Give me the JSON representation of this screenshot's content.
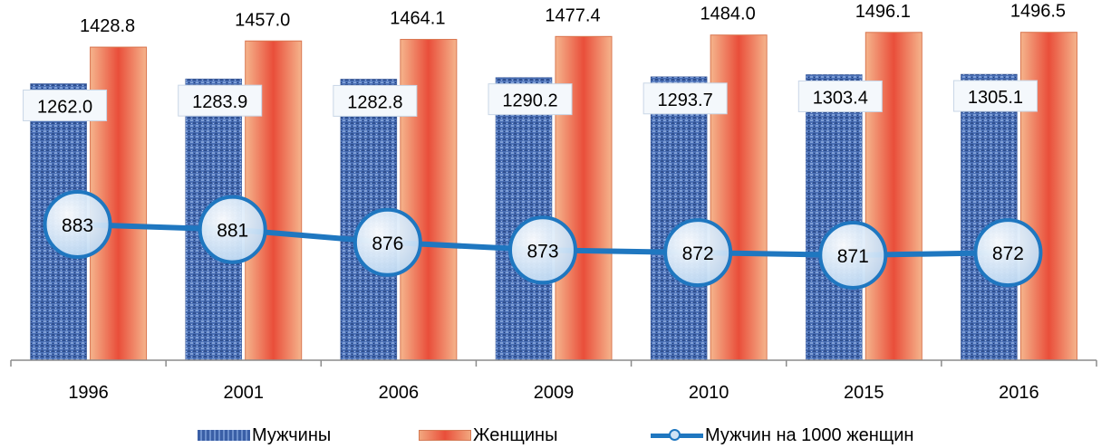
{
  "chart_data": {
    "type": "bar",
    "categories": [
      "1996",
      "2001",
      "2006",
      "2009",
      "2010",
      "2015",
      "2016"
    ],
    "series": [
      {
        "name": "Мужчины",
        "values": [
          1262.0,
          1283.9,
          1282.8,
          1290.2,
          1293.7,
          1303.4,
          1305.1
        ],
        "labels": [
          "1262.0",
          "1283.9",
          "1282.8",
          "1290.2",
          "1293.7",
          "1303.4",
          "1305.1"
        ]
      },
      {
        "name": "Женщины",
        "values": [
          1428.8,
          1457.0,
          1464.1,
          1477.4,
          1484.0,
          1496.1,
          1496.5
        ],
        "labels": [
          "1428.8",
          "1457.0",
          "1464.1",
          "1477.4",
          "1484.0",
          "1496.1",
          "1496.5"
        ]
      },
      {
        "name": "Мужчин на 1000 женщин",
        "type": "line",
        "values": [
          883,
          881,
          876,
          873,
          872,
          871,
          872
        ],
        "labels": [
          "883",
          "881",
          "876",
          "873",
          "872",
          "871",
          "872"
        ]
      }
    ],
    "legend_position": "bottom",
    "grid": false,
    "ylim": [
      0,
      1520
    ],
    "line_ylim": [
      830,
      960
    ],
    "colors": {
      "men": "#4a6fb5",
      "women": "#e94e3a",
      "line": "#1f77c0",
      "marker_fill": "#cfe3f5"
    }
  },
  "legend": {
    "men": "Мужчины",
    "women": "Женщины",
    "ratio": "Мужчин на 1000 женщин"
  }
}
